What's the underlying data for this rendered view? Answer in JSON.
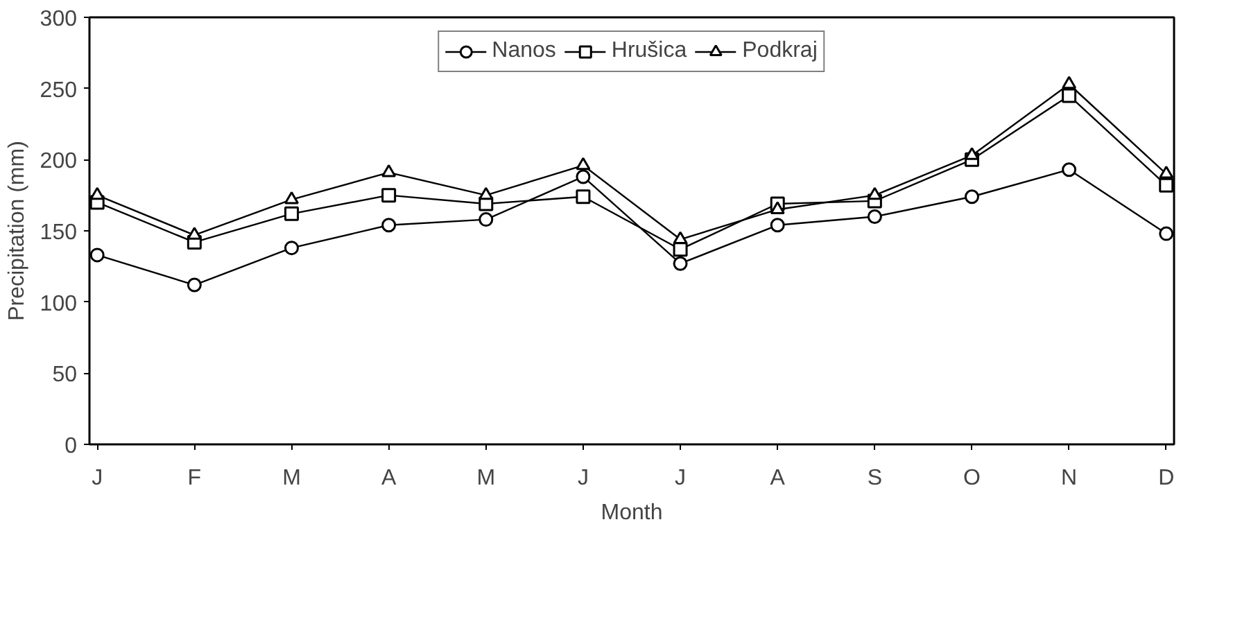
{
  "chart_data": {
    "type": "line",
    "xlabel": "Month",
    "ylabel": "Precipitation (mm)",
    "categories": [
      "J",
      "F",
      "M",
      "A",
      "M",
      "J",
      "J",
      "A",
      "S",
      "O",
      "N",
      "D"
    ],
    "series": [
      {
        "name": "Nanos",
        "color": "#000000",
        "marker": "circle",
        "values": [
          133,
          112,
          138,
          154,
          158,
          188,
          127,
          154,
          160,
          174,
          193,
          148
        ]
      },
      {
        "name": "Hrušica",
        "color": "#000000",
        "marker": "square",
        "values": [
          170,
          142,
          162,
          175,
          169,
          174,
          137,
          169,
          171,
          200,
          245,
          182
        ]
      },
      {
        "name": "Podkraj",
        "color": "#000000",
        "marker": "triangle",
        "values": [
          175,
          147,
          172,
          191,
          175,
          196,
          144,
          165,
          175,
          203,
          253,
          190
        ]
      }
    ],
    "ylim": [
      0,
      300
    ],
    "yticks": [
      0,
      50,
      100,
      150,
      200,
      250,
      300
    ],
    "grid": false,
    "legend": "top",
    "line_style": "solid"
  }
}
